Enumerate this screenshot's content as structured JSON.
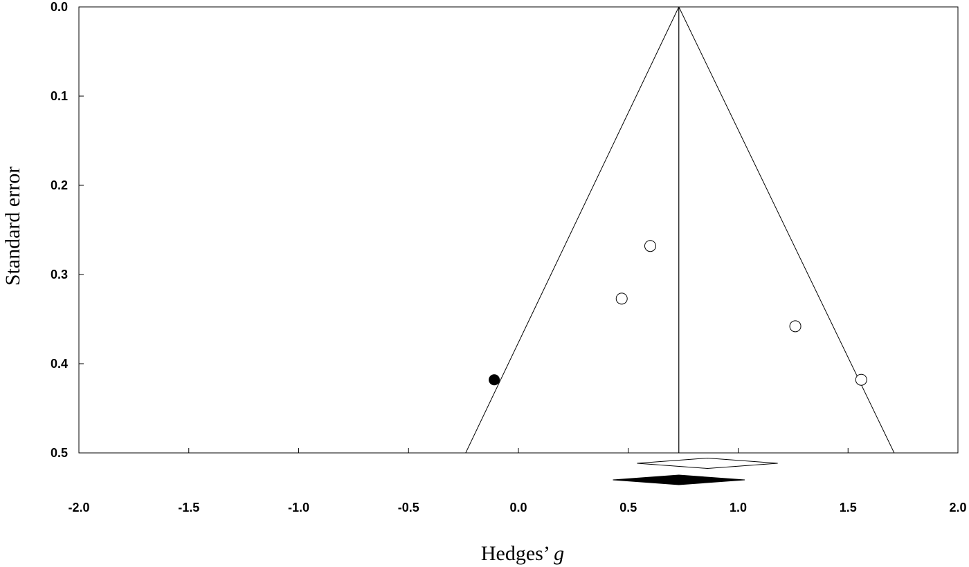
{
  "chart_data": {
    "type": "scatter",
    "title": "",
    "xlabel": "Hedges’",
    "xlabel_italic": "g",
    "ylabel": "Standard error",
    "xlim": [
      -2.0,
      2.0
    ],
    "ylim": [
      0.0,
      0.5
    ],
    "y_inverted": true,
    "grid": false,
    "x_ticks": [
      "-2.0",
      "-1.5",
      "-1.0",
      "-0.5",
      "0.0",
      "0.5",
      "1.0",
      "1.5",
      "2.0"
    ],
    "y_ticks": [
      "0.0",
      "0.1",
      "0.2",
      "0.3",
      "0.4",
      "0.5"
    ],
    "pooled_effect": 0.73,
    "funnel_base": {
      "left": -0.24,
      "right": 1.71,
      "se": 0.5
    },
    "series": [
      {
        "marker": "open-circle",
        "points": [
          {
            "x": 0.6,
            "y": 0.268
          },
          {
            "x": 0.47,
            "y": 0.327
          },
          {
            "x": 1.26,
            "y": 0.358
          },
          {
            "x": 1.56,
            "y": 0.418
          }
        ]
      },
      {
        "marker": "filled-circle",
        "points": [
          {
            "x": -0.11,
            "y": 0.418
          }
        ]
      }
    ],
    "summary_diamonds": [
      {
        "fill": "open",
        "center": 0.86,
        "low": 0.54,
        "high": 1.18
      },
      {
        "fill": "filled",
        "center": 0.73,
        "low": 0.43,
        "high": 1.03
      }
    ],
    "colors": {
      "line": "#000000",
      "open_fill": "#ffffff",
      "filled_fill": "#000000"
    }
  }
}
